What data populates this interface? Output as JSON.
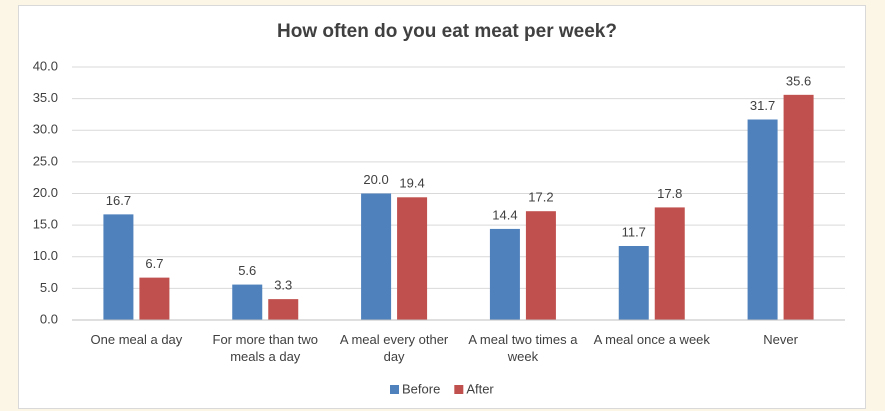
{
  "chart_data": {
    "type": "bar",
    "title": "How often do you eat meat per week?",
    "categories": [
      "One meal a day",
      "For more than two meals a day",
      "A meal every other day",
      "A meal two times a week",
      "A meal once a week",
      "Never"
    ],
    "series": [
      {
        "name": "Before",
        "color": "#4f81bd",
        "values": [
          16.7,
          5.6,
          20.0,
          14.4,
          11.7,
          31.7
        ],
        "value_labels": [
          "16.7",
          "5.6",
          "20.0",
          "14.4",
          "11.7",
          "31.7"
        ]
      },
      {
        "name": "After",
        "color": "#c0504d",
        "values": [
          6.7,
          3.3,
          19.4,
          17.2,
          17.8,
          35.6
        ],
        "value_labels": [
          "6.7",
          "3.3",
          "19.4",
          "17.2",
          "17.8",
          "35.6"
        ]
      }
    ],
    "ylim": [
      0,
      40
    ],
    "yticks": [
      {
        "value": 0,
        "label": "0.0"
      },
      {
        "value": 5,
        "label": "5.0"
      },
      {
        "value": 10,
        "label": "10.0"
      },
      {
        "value": 15,
        "label": "15.0"
      },
      {
        "value": 20,
        "label": "20.0"
      },
      {
        "value": 25,
        "label": "25.0"
      },
      {
        "value": 30,
        "label": "30.0"
      },
      {
        "value": 35,
        "label": "35.0"
      },
      {
        "value": 40,
        "label": "40.0"
      }
    ],
    "grid": true,
    "legend": "bottom"
  }
}
